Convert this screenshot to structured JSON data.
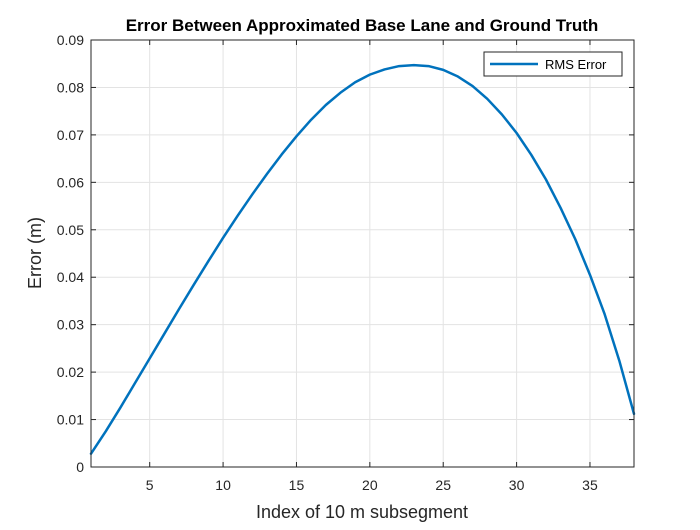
{
  "chart_data": {
    "type": "line",
    "title": "Error Between Approximated Base Lane and Ground Truth",
    "xlabel": "Index of 10 m subsegment",
    "ylabel": "Error (m)",
    "xlim": [
      1,
      38
    ],
    "ylim": [
      0,
      0.09
    ],
    "xticks": [
      5,
      10,
      15,
      20,
      25,
      30,
      35
    ],
    "yticks": [
      0,
      0.01,
      0.02,
      0.03,
      0.04,
      0.05,
      0.06,
      0.07,
      0.08,
      0.09
    ],
    "xtick_labels": [
      "5",
      "10",
      "15",
      "20",
      "25",
      "30",
      "35"
    ],
    "ytick_labels": [
      "0",
      "0.01",
      "0.02",
      "0.03",
      "0.04",
      "0.05",
      "0.06",
      "0.07",
      "0.08",
      "0.09"
    ],
    "grid": true,
    "legend_position": "top-right",
    "series": [
      {
        "name": "RMS Error",
        "color": "#0072BD",
        "x": [
          1,
          2,
          3,
          4,
          5,
          6,
          7,
          8,
          9,
          10,
          11,
          12,
          13,
          14,
          15,
          16,
          17,
          18,
          19,
          20,
          21,
          22,
          23,
          24,
          25,
          26,
          27,
          28,
          29,
          30,
          31,
          32,
          33,
          34,
          35,
          36,
          37,
          38
        ],
        "y": [
          0.0028,
          0.0075,
          0.0125,
          0.0177,
          0.0229,
          0.0281,
          0.0333,
          0.0384,
          0.0434,
          0.0483,
          0.053,
          0.0575,
          0.0618,
          0.0659,
          0.0697,
          0.0732,
          0.0763,
          0.0789,
          0.0811,
          0.0827,
          0.0838,
          0.0845,
          0.0847,
          0.0845,
          0.0837,
          0.0823,
          0.0803,
          0.0776,
          0.0743,
          0.0704,
          0.0658,
          0.0606,
          0.0546,
          0.048,
          0.0405,
          0.0322,
          0.0224,
          0.0112
        ]
      }
    ]
  }
}
